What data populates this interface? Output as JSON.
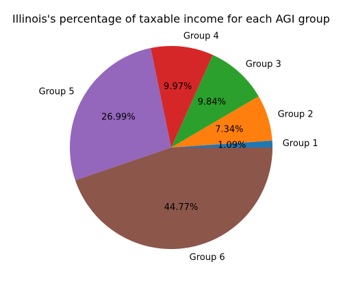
{
  "chart_data": {
    "type": "pie",
    "title": "Illinois's percentage of taxable income for each AGI group",
    "categories": [
      "Group 1",
      "Group 2",
      "Group 3",
      "Group 4",
      "Group 5",
      "Group 6"
    ],
    "values": [
      1.09,
      7.34,
      9.84,
      9.97,
      26.99,
      44.77
    ],
    "percent_labels": [
      "1.09%",
      "7.34%",
      "9.84%",
      "9.97%",
      "26.99%",
      "44.77%"
    ],
    "colors": [
      "#1f77b4",
      "#ff7f0e",
      "#2ca02c",
      "#d62728",
      "#9467bd",
      "#8c564b"
    ],
    "start_angle_deg": 0,
    "direction": "counterclockwise",
    "legend": "none"
  }
}
